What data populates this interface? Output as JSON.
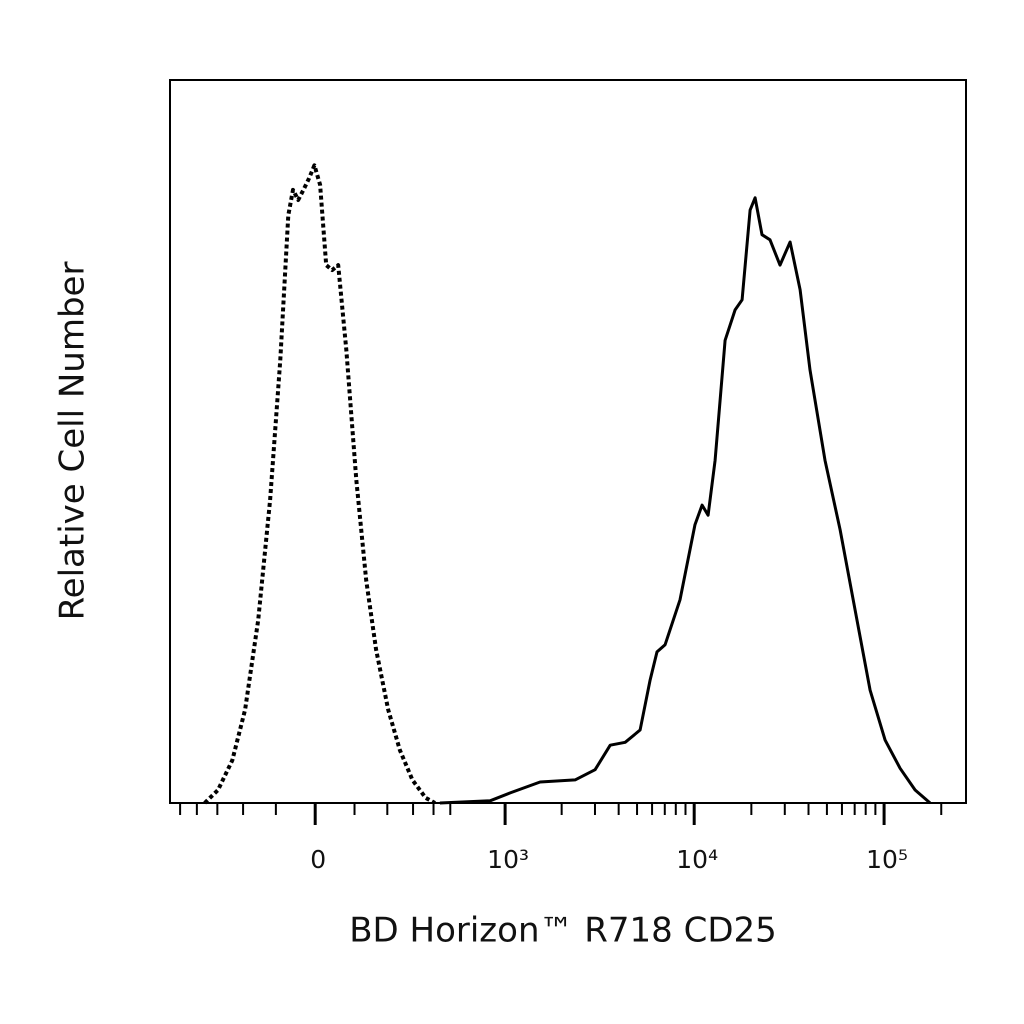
{
  "chart_data": {
    "type": "line",
    "x_label": "BD Horizon™ R718 CD25",
    "y_label": "Relative Cell Number",
    "xscale": "biexponential",
    "xlim": [
      -570,
      270000
    ],
    "ylim": [
      0,
      100
    ],
    "xticks": [
      0,
      {
        "value": 1000,
        "label": "10³"
      },
      {
        "value": 10000,
        "label": "10⁴"
      },
      {
        "value": 100000,
        "label": "10⁵"
      }
    ],
    "xminorticks": [
      -500,
      -400,
      -300,
      -200,
      -100,
      100,
      200,
      300,
      400,
      500,
      2000,
      3000,
      4000,
      5000,
      6000,
      7000,
      8000,
      9000,
      20000,
      30000,
      40000,
      50000,
      60000,
      70000,
      80000,
      90000,
      200000
    ],
    "series": [
      {
        "color": "#000000",
        "line_style": "dotted",
        "x": [
          -359,
          -297,
          -239,
          -193,
          -151,
          -116,
          -88,
          -67,
          -55,
          -42,
          -29,
          -15,
          -2,
          12,
          27,
          42,
          57,
          78,
          105,
          133,
          163,
          203,
          246,
          297,
          359,
          408
        ],
        "values": [
          0,
          1.8,
          5.9,
          12.9,
          25.3,
          41.9,
          61.3,
          81.3,
          84.8,
          83.4,
          84.8,
          86.4,
          88.2,
          85.5,
          74.4,
          73.7,
          74.4,
          62.7,
          44.7,
          30.8,
          21.2,
          12.9,
          7.3,
          3.2,
          0.7,
          0
        ]
      },
      {
        "color": "#000000",
        "line_style": "solid",
        "x": [
          436,
          830,
          1065,
          1537,
          2357,
          3006,
          3608,
          4329,
          5189,
          5858,
          6373,
          7026,
          8423,
          10100,
          11009,
          11837,
          12888,
          14544,
          16423,
          17877,
          19695,
          20927,
          22765,
          25088,
          28320,
          31977,
          36138,
          40743,
          48864,
          58641,
          70357,
          84416,
          101200,
          121400,
          145600,
          174700
        ],
        "values": [
          0,
          0.3,
          1.4,
          2.9,
          3.2,
          4.6,
          8.0,
          8.4,
          10.1,
          17.0,
          20.9,
          21.9,
          28.1,
          38.5,
          41.2,
          39.8,
          47.4,
          64.0,
          68.2,
          69.6,
          82.0,
          83.7,
          78.6,
          77.9,
          74.4,
          77.6,
          71.0,
          59.9,
          47.4,
          37.8,
          26.7,
          15.6,
          8.7,
          4.8,
          1.8,
          0
        ]
      }
    ]
  }
}
